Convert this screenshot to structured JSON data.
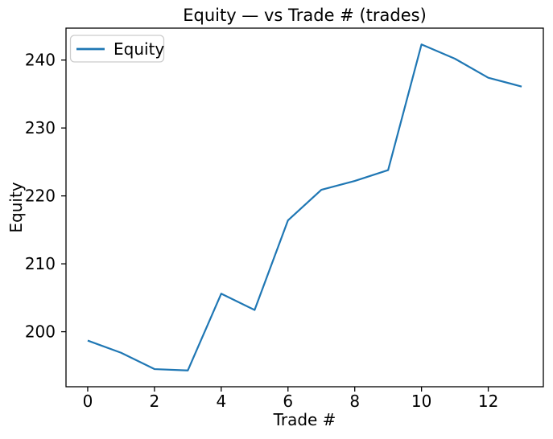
{
  "figure": {
    "background": "#ffffff",
    "text_color": "#000000",
    "spine_color": "#000000",
    "legend_border_color": "#cccccc"
  },
  "chart_data": {
    "type": "line",
    "title": "Equity — vs Trade # (trades)",
    "xlabel": "Trade #",
    "ylabel": "Equity",
    "x": [
      0,
      1,
      2,
      3,
      4,
      5,
      6,
      7,
      8,
      9,
      10,
      11,
      12,
      13
    ],
    "series": [
      {
        "name": "Equity",
        "color": "#1f77b4",
        "values": [
          198.7,
          196.9,
          194.5,
          194.3,
          205.6,
          203.2,
          216.4,
          220.9,
          222.2,
          223.8,
          242.3,
          240.2,
          237.4,
          236.1
        ]
      }
    ],
    "xlim": [
      -0.65,
      13.65
    ],
    "ylim": [
      191.9,
      244.7
    ],
    "xticks": [
      0,
      2,
      4,
      6,
      8,
      10,
      12
    ],
    "yticks": [
      200,
      210,
      220,
      230,
      240
    ],
    "grid": false,
    "legend": {
      "position": "upper left",
      "entries": [
        "Equity"
      ]
    }
  }
}
